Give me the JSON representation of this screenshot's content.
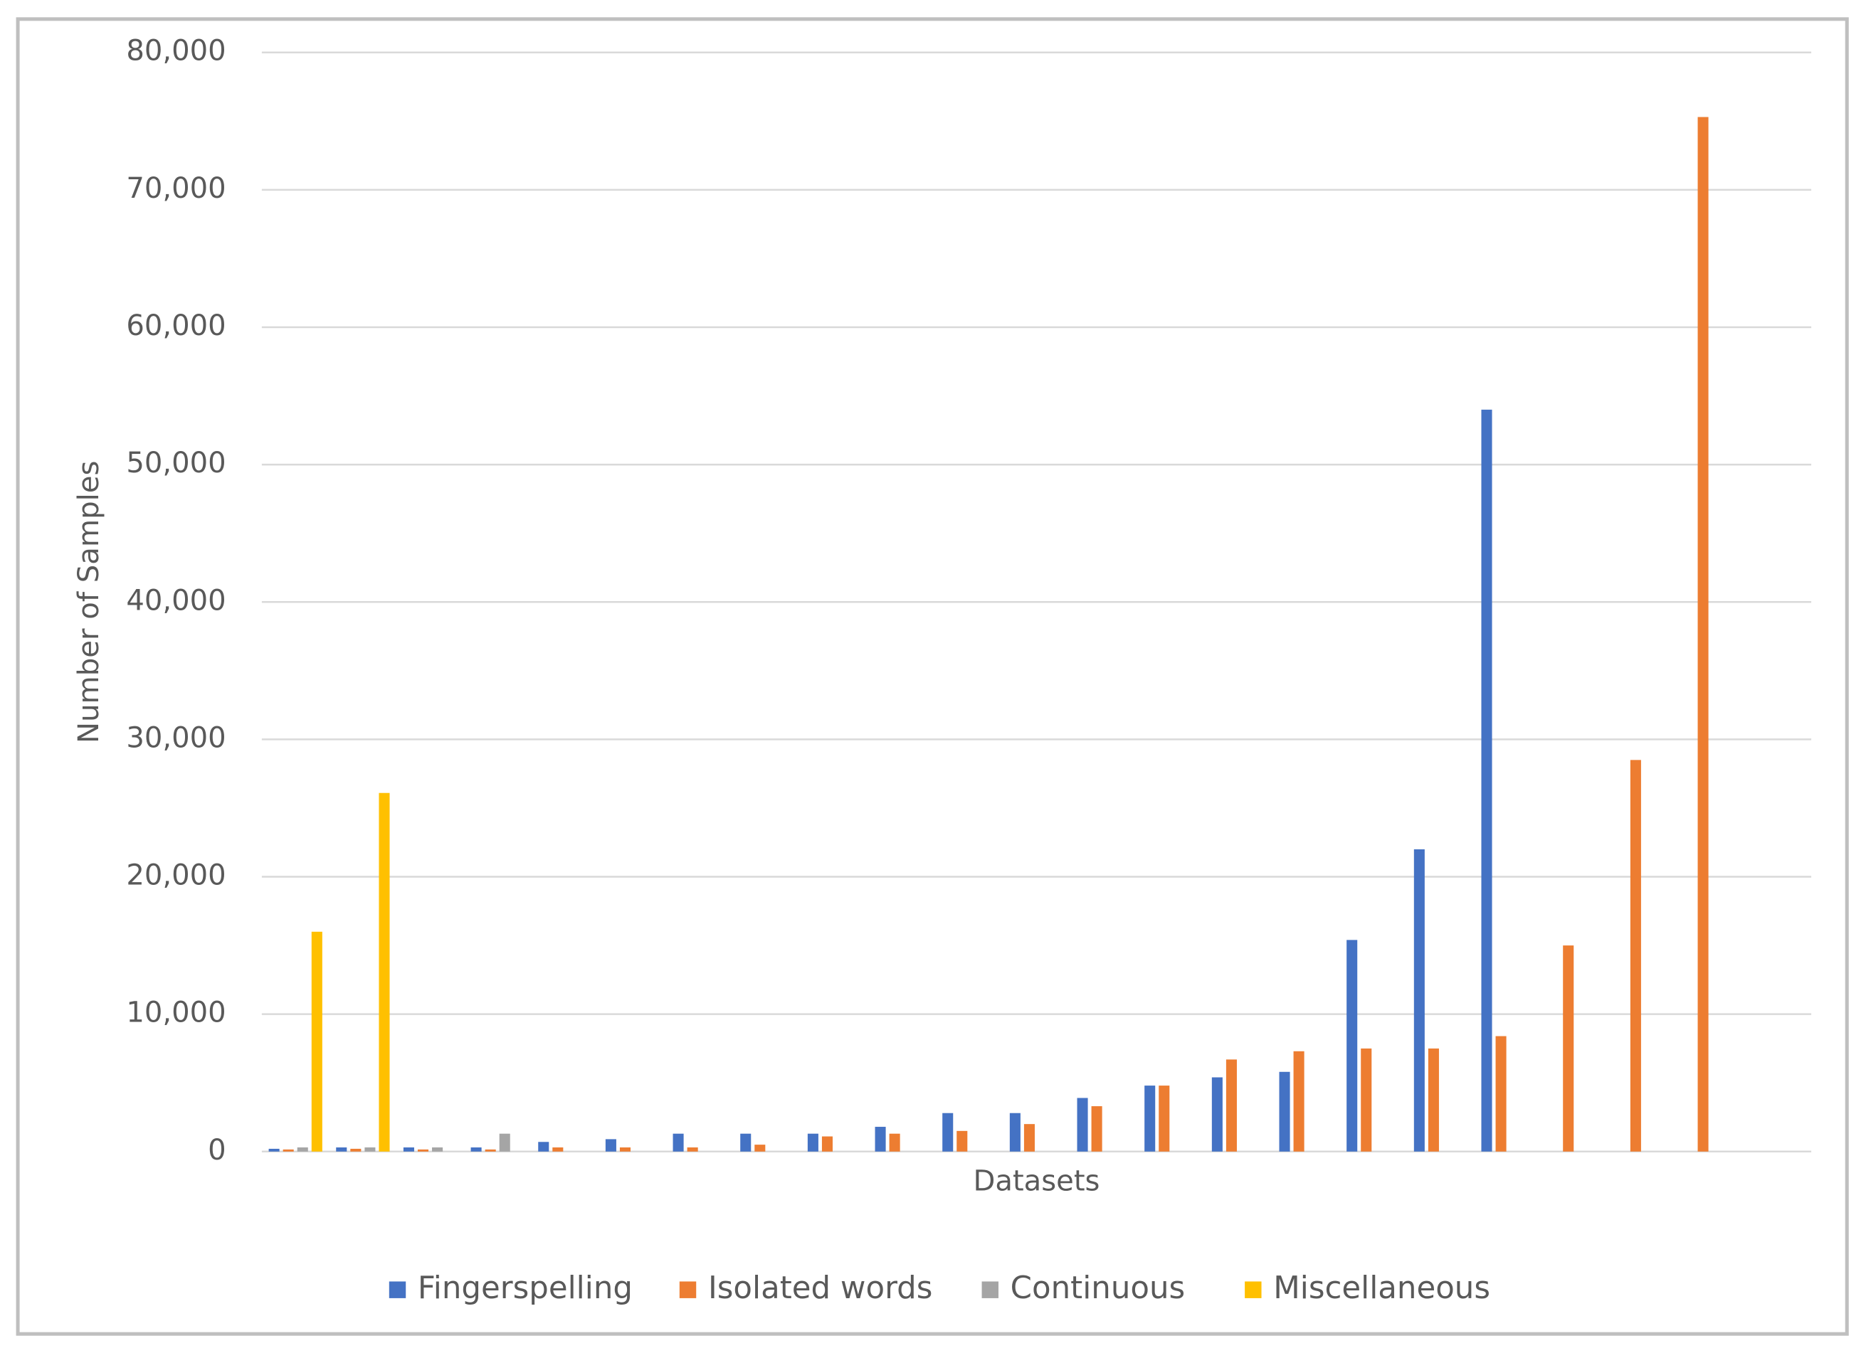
{
  "chart_data": {
    "type": "bar",
    "y_label": "Number of Samples",
    "x_label": "Datasets",
    "categories": [
      null,
      null,
      null,
      null,
      null,
      null,
      null,
      null,
      null,
      null,
      null,
      null,
      null,
      null,
      null,
      null,
      null,
      null,
      null,
      null,
      null,
      null,
      null
    ],
    "series": [
      {
        "name": "Fingerspelling",
        "color": "#4472c4",
        "values": [
          200,
          300,
          300,
          300,
          700,
          900,
          1300,
          1300,
          1300,
          1800,
          2800,
          2800,
          3900,
          4800,
          5400,
          5800,
          15400,
          22000,
          54000,
          null,
          null,
          null,
          null
        ]
      },
      {
        "name": "Isolated words",
        "color": "#ed7d31",
        "values": [
          150,
          200,
          150,
          150,
          300,
          300,
          300,
          500,
          1100,
          1300,
          1500,
          2000,
          3300,
          4800,
          6700,
          7300,
          7500,
          7500,
          8400,
          15000,
          28500,
          75300,
          null
        ]
      },
      {
        "name": "Continuous",
        "color": "#a5a5a5",
        "values": [
          300,
          300,
          300,
          1300,
          null,
          null,
          null,
          null,
          null,
          null,
          null,
          null,
          null,
          null,
          null,
          null,
          null,
          null,
          null,
          null,
          null,
          null,
          null
        ]
      },
      {
        "name": "Miscellaneous",
        "color": "#ffc000",
        "values": [
          16000,
          26100,
          null,
          null,
          null,
          null,
          null,
          null,
          null,
          null,
          null,
          null,
          null,
          null,
          null,
          null,
          null,
          null,
          null,
          null,
          null,
          null,
          null
        ]
      }
    ],
    "ylim": [
      0,
      80000
    ],
    "yticks": [
      0,
      {
        "value": 10000,
        "label": "10,000"
      },
      {
        "value": 20000,
        "label": "20,000"
      },
      {
        "value": 30000,
        "label": "30,000"
      },
      {
        "value": 40000,
        "label": "40,000"
      },
      {
        "value": 50000,
        "label": "50,000"
      },
      {
        "value": 60000,
        "label": "60,000"
      },
      {
        "value": 70000,
        "label": "70,000"
      },
      {
        "value": 80000,
        "label": "80,000"
      }
    ],
    "grid": true,
    "legend": "bottom"
  }
}
